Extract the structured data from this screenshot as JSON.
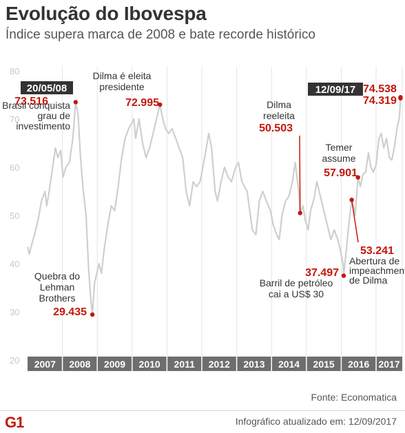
{
  "header": {
    "title": "Evolução do Ibovespa",
    "subtitle": "Índice supera marca de 2008 e bate recorde histórico"
  },
  "colors": {
    "accent": "#c4170c",
    "line": "#cfcfcf",
    "axis_band": "#6e6e6e",
    "tag_bg": "#333333"
  },
  "footer": {
    "source": "Fonte: Economatica",
    "logo": "G1",
    "updated": "Infográfico atualizado em: 12/09/2017"
  },
  "chart_data": {
    "type": "line",
    "title": "Evolução do Ibovespa",
    "subtitle": "Índice supera marca de 2008 e bate recorde histórico",
    "xlabel": "",
    "ylabel": "",
    "xlim": [
      2007.0,
      2017.75
    ],
    "ylim": [
      20,
      80
    ],
    "y_ticks": [
      "20",
      "30",
      "40",
      "50",
      "60",
      "70",
      "80"
    ],
    "x_ticks": [
      "2007",
      "2008",
      "2009",
      "2010",
      "2011",
      "2012",
      "2013",
      "2014",
      "2015",
      "2016",
      "2017"
    ],
    "grid": "vertical year lines",
    "legend": "none",
    "series": [
      {
        "values": [
          [
            2007.0,
            43.5
          ],
          [
            2007.05,
            42.0
          ],
          [
            2007.12,
            44.0
          ],
          [
            2007.2,
            46.0
          ],
          [
            2007.3,
            49.0
          ],
          [
            2007.4,
            53.0
          ],
          [
            2007.5,
            55.0
          ],
          [
            2007.55,
            52.0
          ],
          [
            2007.62,
            55.0
          ],
          [
            2007.72,
            60.0
          ],
          [
            2007.8,
            64.0
          ],
          [
            2007.87,
            62.0
          ],
          [
            2007.95,
            63.5
          ],
          [
            2008.02,
            58.0
          ],
          [
            2008.1,
            60.0
          ],
          [
            2008.2,
            61.0
          ],
          [
            2008.3,
            66.0
          ],
          [
            2008.38,
            73.516
          ],
          [
            2008.45,
            71.0
          ],
          [
            2008.52,
            62.0
          ],
          [
            2008.6,
            55.0
          ],
          [
            2008.68,
            50.0
          ],
          [
            2008.75,
            39.0
          ],
          [
            2008.81,
            33.0
          ],
          [
            2008.86,
            29.435
          ],
          [
            2008.92,
            36.0
          ],
          [
            2008.97,
            37.5
          ],
          [
            2009.05,
            40.0
          ],
          [
            2009.12,
            38.0
          ],
          [
            2009.2,
            43.0
          ],
          [
            2009.3,
            48.0
          ],
          [
            2009.4,
            52.0
          ],
          [
            2009.5,
            51.0
          ],
          [
            2009.6,
            56.0
          ],
          [
            2009.7,
            62.0
          ],
          [
            2009.8,
            66.0
          ],
          [
            2009.9,
            68.0
          ],
          [
            2009.98,
            69.0
          ],
          [
            2010.05,
            70.0
          ],
          [
            2010.1,
            66.0
          ],
          [
            2010.2,
            70.0
          ],
          [
            2010.3,
            65.0
          ],
          [
            2010.4,
            62.0
          ],
          [
            2010.5,
            64.0
          ],
          [
            2010.6,
            67.0
          ],
          [
            2010.7,
            70.0
          ],
          [
            2010.8,
            72.995
          ],
          [
            2010.88,
            70.0
          ],
          [
            2010.96,
            68.0
          ],
          [
            2011.05,
            67.0
          ],
          [
            2011.15,
            68.0
          ],
          [
            2011.3,
            65.0
          ],
          [
            2011.45,
            62.0
          ],
          [
            2011.55,
            55.0
          ],
          [
            2011.65,
            52.0
          ],
          [
            2011.75,
            57.0
          ],
          [
            2011.85,
            56.0
          ],
          [
            2011.95,
            57.0
          ],
          [
            2012.08,
            62.0
          ],
          [
            2012.2,
            67.0
          ],
          [
            2012.28,
            64.0
          ],
          [
            2012.38,
            55.0
          ],
          [
            2012.45,
            53.0
          ],
          [
            2012.55,
            57.0
          ],
          [
            2012.65,
            60.0
          ],
          [
            2012.75,
            58.0
          ],
          [
            2012.85,
            57.0
          ],
          [
            2012.97,
            60.0
          ],
          [
            2013.05,
            61.0
          ],
          [
            2013.15,
            57.0
          ],
          [
            2013.3,
            55.0
          ],
          [
            2013.45,
            47.0
          ],
          [
            2013.55,
            46.0
          ],
          [
            2013.65,
            53.0
          ],
          [
            2013.75,
            55.0
          ],
          [
            2013.85,
            53.0
          ],
          [
            2013.97,
            51.0
          ],
          [
            2014.05,
            48.0
          ],
          [
            2014.15,
            46.0
          ],
          [
            2014.22,
            45.0
          ],
          [
            2014.3,
            50.0
          ],
          [
            2014.4,
            53.0
          ],
          [
            2014.5,
            54.0
          ],
          [
            2014.6,
            57.0
          ],
          [
            2014.68,
            61.0
          ],
          [
            2014.78,
            55.0
          ],
          [
            2014.82,
            50.503
          ],
          [
            2014.9,
            52.0
          ],
          [
            2014.97,
            49.0
          ],
          [
            2015.05,
            47.0
          ],
          [
            2015.12,
            51.0
          ],
          [
            2015.22,
            53.5
          ],
          [
            2015.3,
            57.0
          ],
          [
            2015.4,
            54.0
          ],
          [
            2015.5,
            51.0
          ],
          [
            2015.6,
            48.0
          ],
          [
            2015.7,
            45.0
          ],
          [
            2015.8,
            47.0
          ],
          [
            2015.9,
            45.0
          ],
          [
            2015.97,
            43.0
          ],
          [
            2016.05,
            40.0
          ],
          [
            2016.07,
            37.497
          ],
          [
            2016.12,
            41.0
          ],
          [
            2016.2,
            47.0
          ],
          [
            2016.3,
            53.241
          ],
          [
            2016.35,
            52.0
          ],
          [
            2016.4,
            50.0
          ],
          [
            2016.48,
            57.901
          ],
          [
            2016.55,
            56.0
          ],
          [
            2016.62,
            58.5
          ],
          [
            2016.7,
            59.0
          ],
          [
            2016.78,
            63.0
          ],
          [
            2016.85,
            60.0
          ],
          [
            2016.92,
            59.0
          ],
          [
            2017.0,
            60.5
          ],
          [
            2017.08,
            66.0
          ],
          [
            2017.15,
            67.0
          ],
          [
            2017.22,
            64.0
          ],
          [
            2017.3,
            66.0
          ],
          [
            2017.38,
            62.0
          ],
          [
            2017.45,
            61.5
          ],
          [
            2017.52,
            64.0
          ],
          [
            2017.6,
            68.0
          ],
          [
            2017.67,
            70.5
          ],
          [
            2017.7,
            74.319
          ]
        ]
      }
    ],
    "highlight_points": [
      {
        "x": 2008.38,
        "y": 73.516,
        "value": "73.516",
        "date": "20/05/08",
        "note": [
          "Brasil conquista",
          "grau de",
          "investimento"
        ]
      },
      {
        "x": 2008.86,
        "y": 29.435,
        "value": "29.435",
        "note": [
          "Quebra do",
          "Lehman",
          "Brothers"
        ]
      },
      {
        "x": 2010.8,
        "y": 72.995,
        "value": "72.995",
        "note": [
          "Dilma é eleita",
          "presidente"
        ]
      },
      {
        "x": 2014.82,
        "y": 50.503,
        "value": "50.503",
        "note": [
          "Dilma",
          "reeleita"
        ]
      },
      {
        "x": 2016.07,
        "y": 37.497,
        "value": "37.497",
        "note": [
          "Barril de petróleo",
          "cai a US$ 30"
        ]
      },
      {
        "x": 2016.3,
        "y": 53.241,
        "value": "53.241",
        "note": [
          "Abertura de",
          "impeachment",
          "de Dilma"
        ]
      },
      {
        "x": 2016.48,
        "y": 57.901,
        "value": "57.901",
        "note": [
          "Temer",
          "assume"
        ]
      },
      {
        "x": 2017.7,
        "y": 74.538,
        "value": "74.538",
        "date": "12/09/17"
      },
      {
        "x": 2017.7,
        "y": 74.319,
        "value": "74.319"
      }
    ]
  }
}
